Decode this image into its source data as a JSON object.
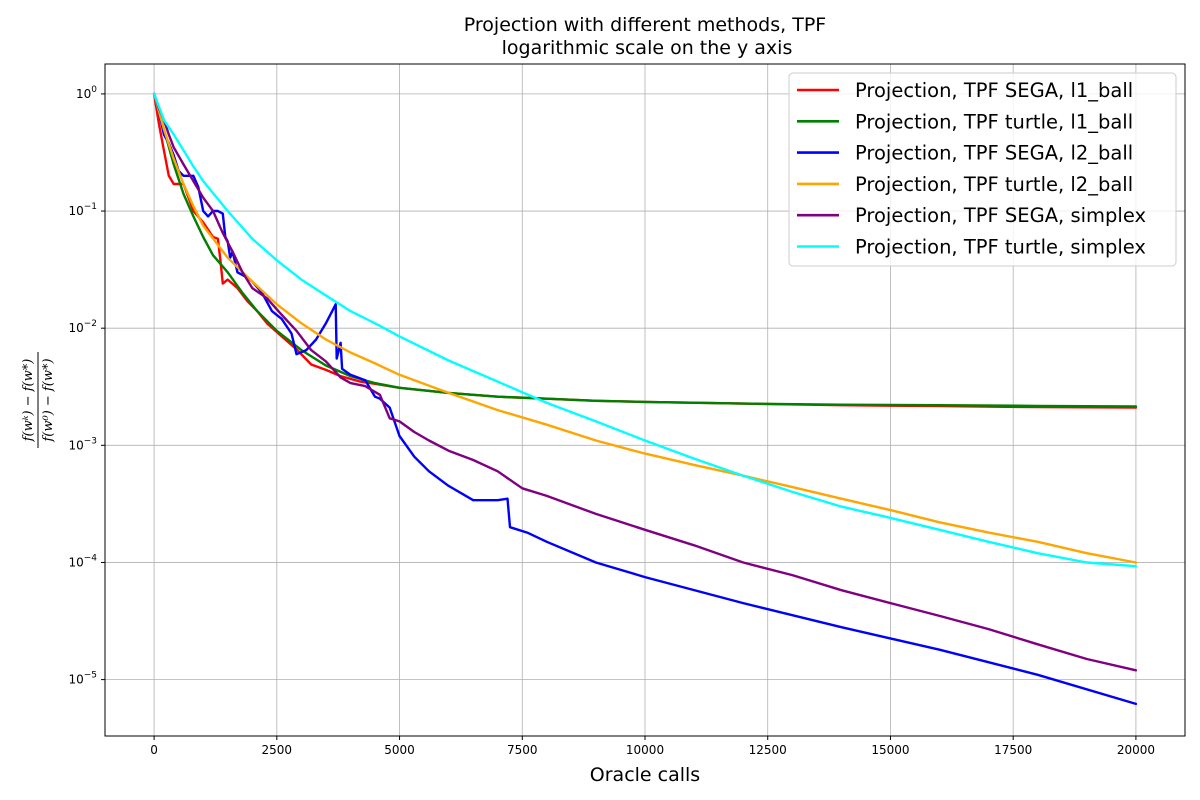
{
  "chart_data": {
    "type": "line",
    "title": [
      "Projection with different methods, TPF",
      "logarithmic scale on the y axis"
    ],
    "xlabel": "Oracle calls",
    "ylabel": "(f(w^k) - f(w*)) / (f(w^0) - f(w*))",
    "ylabel_numerator": "f(wᵏ) − f(w*)",
    "ylabel_denominator": "f(w⁰) − f(w*)",
    "xlim": [
      -1000,
      21000
    ],
    "ylim": [
      3.3e-06,
      1.8
    ],
    "yscale": "log",
    "grid": true,
    "legend_position": "top-right",
    "x_ticks": [
      0,
      2500,
      5000,
      7500,
      10000,
      12500,
      15000,
      17500,
      20000
    ],
    "y_ticks": [
      {
        "value": 1,
        "base": "10",
        "exp": "0"
      },
      {
        "value": 0.1,
        "base": "10",
        "exp": "−1"
      },
      {
        "value": 0.01,
        "base": "10",
        "exp": "−2"
      },
      {
        "value": 0.001,
        "base": "10",
        "exp": "−3"
      },
      {
        "value": 0.0001,
        "base": "10",
        "exp": "−4"
      },
      {
        "value": 1e-05,
        "base": "10",
        "exp": "−5"
      }
    ],
    "series": [
      {
        "name": "Projection, TPF SEGA, l1_ball",
        "color": "#ff0000",
        "points": [
          [
            0,
            1.0
          ],
          [
            100,
            0.55
          ],
          [
            200,
            0.33
          ],
          [
            300,
            0.2
          ],
          [
            400,
            0.17
          ],
          [
            600,
            0.17
          ],
          [
            800,
            0.1
          ],
          [
            1000,
            0.08
          ],
          [
            1200,
            0.06
          ],
          [
            1300,
            0.058
          ],
          [
            1350,
            0.038
          ],
          [
            1400,
            0.024
          ],
          [
            1500,
            0.026
          ],
          [
            1700,
            0.022
          ],
          [
            1900,
            0.017
          ],
          [
            2100,
            0.014
          ],
          [
            2300,
            0.011
          ],
          [
            2600,
            0.0085
          ],
          [
            2900,
            0.0066
          ],
          [
            3200,
            0.0049
          ],
          [
            3500,
            0.0044
          ],
          [
            3800,
            0.0039
          ],
          [
            4200,
            0.0035
          ],
          [
            4600,
            0.0033
          ],
          [
            5000,
            0.0031
          ],
          [
            6000,
            0.0028
          ],
          [
            7000,
            0.0026
          ],
          [
            8000,
            0.0025
          ],
          [
            9000,
            0.0024
          ],
          [
            10000,
            0.00235
          ],
          [
            12000,
            0.00227
          ],
          [
            14000,
            0.0022
          ],
          [
            16000,
            0.00216
          ],
          [
            18000,
            0.00212
          ],
          [
            20000,
            0.0021
          ]
        ]
      },
      {
        "name": "Projection, TPF turtle, l1_ball",
        "color": "#008000",
        "points": [
          [
            0,
            1.0
          ],
          [
            200,
            0.5
          ],
          [
            400,
            0.25
          ],
          [
            600,
            0.14
          ],
          [
            800,
            0.09
          ],
          [
            1000,
            0.06
          ],
          [
            1200,
            0.042
          ],
          [
            1500,
            0.03
          ],
          [
            1800,
            0.02
          ],
          [
            2100,
            0.014
          ],
          [
            2500,
            0.0095
          ],
          [
            3000,
            0.0065
          ],
          [
            3500,
            0.0048
          ],
          [
            4000,
            0.0039
          ],
          [
            4500,
            0.0034
          ],
          [
            5000,
            0.0031
          ],
          [
            6000,
            0.0028
          ],
          [
            7000,
            0.0026
          ],
          [
            8000,
            0.0025
          ],
          [
            9000,
            0.0024
          ],
          [
            10000,
            0.00235
          ],
          [
            12000,
            0.00227
          ],
          [
            14000,
            0.00222
          ],
          [
            16000,
            0.0022
          ],
          [
            18000,
            0.00217
          ],
          [
            20000,
            0.00215
          ]
        ]
      },
      {
        "name": "Projection, TPF SEGA, l2_ball",
        "color": "#0000ff",
        "points": [
          [
            0,
            1.0
          ],
          [
            100,
            0.7
          ],
          [
            200,
            0.45
          ],
          [
            300,
            0.38
          ],
          [
            400,
            0.3
          ],
          [
            500,
            0.22
          ],
          [
            600,
            0.2
          ],
          [
            800,
            0.2
          ],
          [
            900,
            0.16
          ],
          [
            1000,
            0.1
          ],
          [
            1100,
            0.09
          ],
          [
            1200,
            0.1
          ],
          [
            1300,
            0.1
          ],
          [
            1400,
            0.095
          ],
          [
            1450,
            0.06
          ],
          [
            1500,
            0.055
          ],
          [
            1550,
            0.04
          ],
          [
            1600,
            0.045
          ],
          [
            1700,
            0.03
          ],
          [
            1900,
            0.027
          ],
          [
            2000,
            0.025
          ],
          [
            2200,
            0.02
          ],
          [
            2400,
            0.014
          ],
          [
            2600,
            0.012
          ],
          [
            2800,
            0.009
          ],
          [
            2900,
            0.006
          ],
          [
            3100,
            0.0065
          ],
          [
            3300,
            0.008
          ],
          [
            3500,
            0.011
          ],
          [
            3700,
            0.016
          ],
          [
            3720,
            0.0055
          ],
          [
            3800,
            0.0075
          ],
          [
            3830,
            0.0045
          ],
          [
            4000,
            0.004
          ],
          [
            4300,
            0.0036
          ],
          [
            4500,
            0.0026
          ],
          [
            4600,
            0.0025
          ],
          [
            4800,
            0.0021
          ],
          [
            5000,
            0.0012
          ],
          [
            5300,
            0.0008
          ],
          [
            5600,
            0.0006
          ],
          [
            6000,
            0.00045
          ],
          [
            6500,
            0.00034
          ],
          [
            7000,
            0.00034
          ],
          [
            7200,
            0.00035
          ],
          [
            7250,
            0.0002
          ],
          [
            7600,
            0.00018
          ],
          [
            8000,
            0.00015
          ],
          [
            9000,
            0.0001
          ],
          [
            10000,
            7.5e-05
          ],
          [
            12000,
            4.5e-05
          ],
          [
            14000,
            2.8e-05
          ],
          [
            16000,
            1.8e-05
          ],
          [
            18000,
            1.1e-05
          ],
          [
            20000,
            6.2e-06
          ]
        ]
      },
      {
        "name": "Projection, TPF turtle, l2_ball",
        "color": "#ffa500",
        "points": [
          [
            0,
            1.0
          ],
          [
            200,
            0.5
          ],
          [
            400,
            0.28
          ],
          [
            600,
            0.17
          ],
          [
            800,
            0.11
          ],
          [
            1000,
            0.075
          ],
          [
            1500,
            0.04
          ],
          [
            2000,
            0.025
          ],
          [
            2500,
            0.016
          ],
          [
            3000,
            0.011
          ],
          [
            3500,
            0.008
          ],
          [
            4000,
            0.0062
          ],
          [
            4500,
            0.005
          ],
          [
            5000,
            0.004
          ],
          [
            6000,
            0.0028
          ],
          [
            7000,
            0.002
          ],
          [
            8000,
            0.0015
          ],
          [
            9000,
            0.0011
          ],
          [
            10000,
            0.00085
          ],
          [
            11000,
            0.00068
          ],
          [
            12000,
            0.00055
          ],
          [
            13000,
            0.00044
          ],
          [
            14000,
            0.00035
          ],
          [
            15000,
            0.00028
          ],
          [
            16000,
            0.00022
          ],
          [
            17000,
            0.00018
          ],
          [
            18000,
            0.00015
          ],
          [
            19000,
            0.00012
          ],
          [
            20000,
            0.0001
          ]
        ]
      },
      {
        "name": "Projection, TPF SEGA, simplex",
        "color": "#800080",
        "points": [
          [
            0,
            1.0
          ],
          [
            100,
            0.75
          ],
          [
            200,
            0.6
          ],
          [
            300,
            0.45
          ],
          [
            400,
            0.35
          ],
          [
            600,
            0.25
          ],
          [
            800,
            0.18
          ],
          [
            1000,
            0.13
          ],
          [
            1200,
            0.1
          ],
          [
            1400,
            0.065
          ],
          [
            1600,
            0.045
          ],
          [
            1800,
            0.03
          ],
          [
            2000,
            0.022
          ],
          [
            2300,
            0.018
          ],
          [
            2600,
            0.013
          ],
          [
            2900,
            0.0095
          ],
          [
            3200,
            0.0065
          ],
          [
            3500,
            0.0052
          ],
          [
            3800,
            0.0038
          ],
          [
            4000,
            0.0034
          ],
          [
            4300,
            0.0032
          ],
          [
            4600,
            0.0027
          ],
          [
            4800,
            0.0017
          ],
          [
            5000,
            0.0016
          ],
          [
            5300,
            0.0013
          ],
          [
            5600,
            0.0011
          ],
          [
            6000,
            0.0009
          ],
          [
            6500,
            0.00075
          ],
          [
            7000,
            0.0006
          ],
          [
            7500,
            0.00043
          ],
          [
            8000,
            0.00037
          ],
          [
            9000,
            0.00026
          ],
          [
            10000,
            0.00019
          ],
          [
            11000,
            0.00014
          ],
          [
            12000,
            0.0001
          ],
          [
            13000,
            7.8e-05
          ],
          [
            14000,
            5.8e-05
          ],
          [
            15000,
            4.5e-05
          ],
          [
            16000,
            3.5e-05
          ],
          [
            17000,
            2.7e-05
          ],
          [
            18000,
            2e-05
          ],
          [
            19000,
            1.5e-05
          ],
          [
            20000,
            1.2e-05
          ]
        ]
      },
      {
        "name": "Projection, TPF turtle, simplex",
        "color": "#00ffff",
        "points": [
          [
            0,
            1.0
          ],
          [
            200,
            0.6
          ],
          [
            400,
            0.45
          ],
          [
            600,
            0.33
          ],
          [
            800,
            0.24
          ],
          [
            1000,
            0.18
          ],
          [
            1500,
            0.1
          ],
          [
            2000,
            0.058
          ],
          [
            2500,
            0.038
          ],
          [
            3000,
            0.026
          ],
          [
            3500,
            0.019
          ],
          [
            4000,
            0.014
          ],
          [
            4500,
            0.011
          ],
          [
            5000,
            0.0085
          ],
          [
            6000,
            0.0053
          ],
          [
            7000,
            0.0035
          ],
          [
            8000,
            0.0023
          ],
          [
            9000,
            0.0016
          ],
          [
            10000,
            0.0011
          ],
          [
            11000,
            0.00077
          ],
          [
            12000,
            0.00055
          ],
          [
            13000,
            0.0004
          ],
          [
            14000,
            0.0003
          ],
          [
            15000,
            0.00024
          ],
          [
            16000,
            0.00019
          ],
          [
            17000,
            0.00015
          ],
          [
            18000,
            0.00012
          ],
          [
            19000,
            0.0001
          ],
          [
            20000,
            9.3e-05
          ]
        ]
      }
    ]
  }
}
